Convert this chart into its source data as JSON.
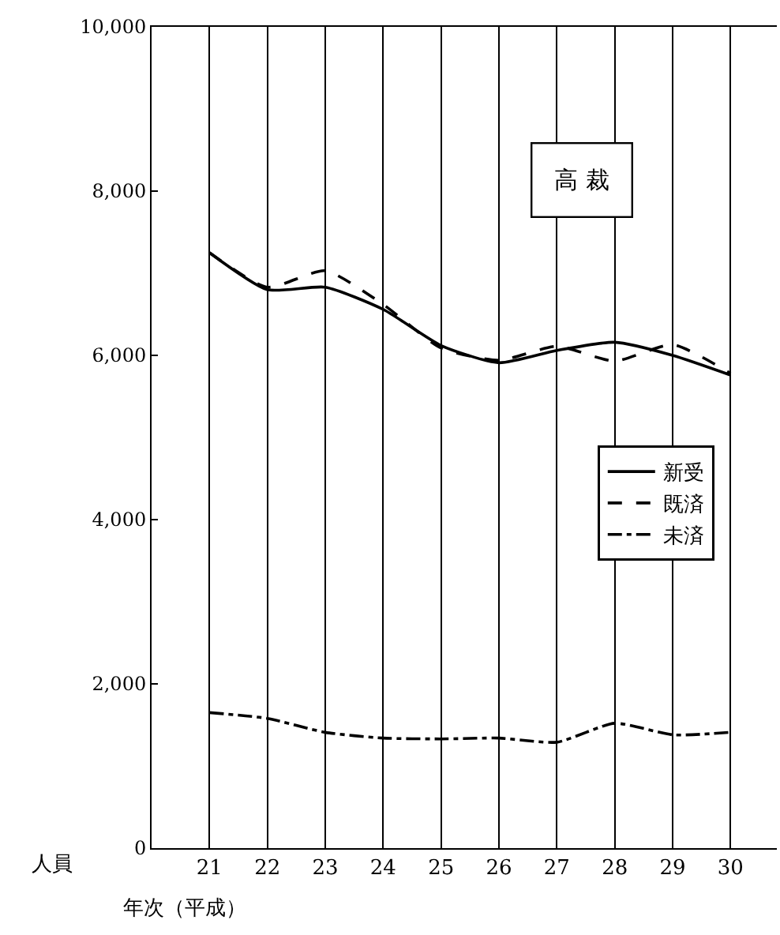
{
  "chart_data": {
    "type": "line",
    "title": "高 裁",
    "xlabel": "年次（平成）",
    "ylabel": "人員",
    "x": [
      21,
      22,
      23,
      24,
      25,
      26,
      27,
      28,
      29,
      30
    ],
    "xlim": [
      20,
      30.8
    ],
    "xticks": [
      21,
      22,
      23,
      24,
      25,
      26,
      27,
      28,
      29,
      30
    ],
    "ylim": [
      0,
      10000
    ],
    "yticks": [
      {
        "value": 0,
        "label": "0"
      },
      {
        "value": 2000,
        "label": "2,000"
      },
      {
        "value": 4000,
        "label": "4,000"
      },
      {
        "value": 6000,
        "label": "6,000"
      },
      {
        "value": 8000,
        "label": "8,000"
      },
      {
        "value": 10000,
        "label": "10,000"
      }
    ],
    "grid": "x",
    "legend": "right",
    "marker": "none",
    "series": [
      {
        "name": "新受",
        "color": "#000000",
        "line_style": "solid",
        "values": [
          7250,
          6800,
          6830,
          6560,
          6120,
          5910,
          6060,
          6160,
          6000,
          5760
        ]
      },
      {
        "name": "既済",
        "color": "#000000",
        "line_style": "dashed",
        "values": [
          7250,
          6830,
          7030,
          6620,
          6090,
          5940,
          6110,
          5930,
          6130,
          5780
        ]
      },
      {
        "name": "未済",
        "color": "#000000",
        "line_style": "dashdot",
        "values": [
          1650,
          1580,
          1410,
          1340,
          1330,
          1340,
          1290,
          1520,
          1380,
          1410
        ]
      }
    ]
  }
}
